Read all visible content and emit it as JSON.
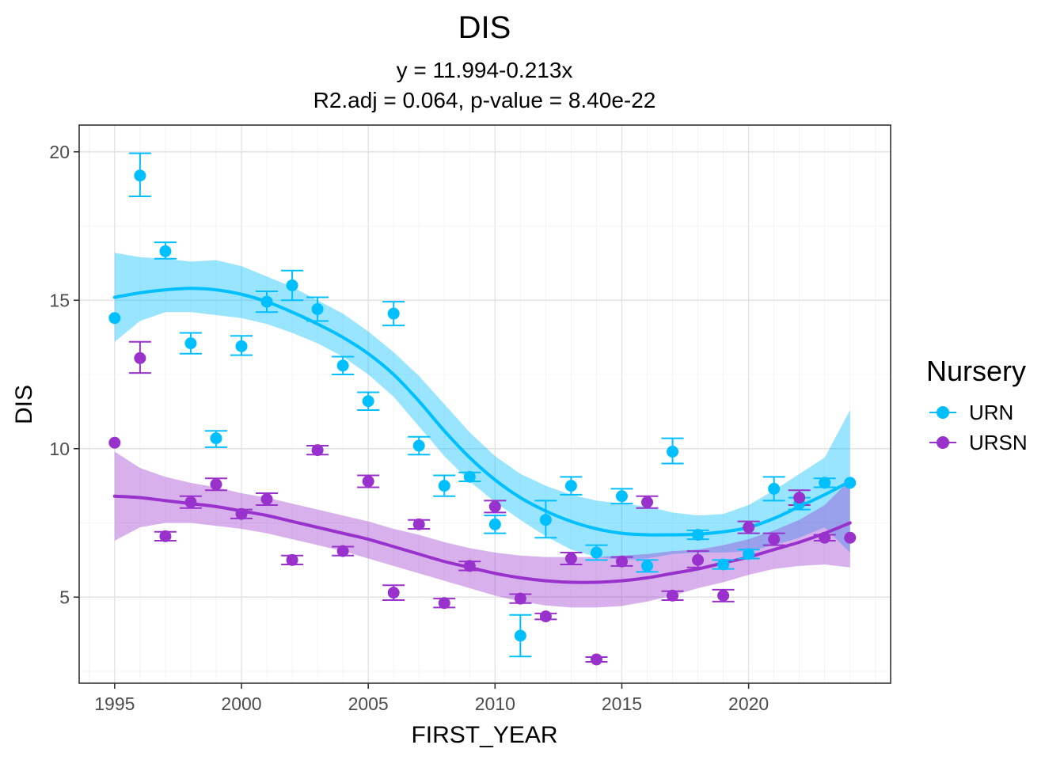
{
  "chart_data": {
    "type": "scatter",
    "title": "DIS",
    "subtitle_line1": "y = 11.994-0.213x",
    "subtitle_line2": "R2.adj = 0.064, p-value = 8.40e-22",
    "xlabel": "FIRST_YEAR",
    "ylabel": "DIS",
    "xlim": [
      1993.6,
      2025.6
    ],
    "ylim": [
      2.1,
      20.9
    ],
    "x_ticks": [
      1995,
      2000,
      2005,
      2010,
      2015,
      2020
    ],
    "y_ticks": [
      5,
      10,
      15,
      20
    ],
    "grid": true,
    "legend": {
      "title": "Nursery",
      "position": "right"
    },
    "series": [
      {
        "name": "URN",
        "color": "#00bfff",
        "band_color": "#87defb",
        "points": [
          {
            "x": 1995,
            "y": 14.4,
            "lo": 14.4,
            "hi": 14.4
          },
          {
            "x": 1996,
            "y": 19.2,
            "lo": 18.5,
            "hi": 19.95
          },
          {
            "x": 1997,
            "y": 16.65,
            "lo": 16.4,
            "hi": 16.95
          },
          {
            "x": 1998,
            "y": 13.55,
            "lo": 13.2,
            "hi": 13.9
          },
          {
            "x": 1999,
            "y": 10.35,
            "lo": 10.05,
            "hi": 10.6
          },
          {
            "x": 2000,
            "y": 13.45,
            "lo": 13.15,
            "hi": 13.8
          },
          {
            "x": 2001,
            "y": 14.95,
            "lo": 14.6,
            "hi": 15.3
          },
          {
            "x": 2002,
            "y": 15.5,
            "lo": 15.0,
            "hi": 16.0
          },
          {
            "x": 2003,
            "y": 14.7,
            "lo": 14.3,
            "hi": 15.1
          },
          {
            "x": 2004,
            "y": 12.8,
            "lo": 12.5,
            "hi": 13.1
          },
          {
            "x": 2005,
            "y": 11.6,
            "lo": 11.3,
            "hi": 11.9
          },
          {
            "x": 2006,
            "y": 14.55,
            "lo": 14.15,
            "hi": 14.95
          },
          {
            "x": 2007,
            "y": 10.1,
            "lo": 9.8,
            "hi": 10.4
          },
          {
            "x": 2008,
            "y": 8.75,
            "lo": 8.4,
            "hi": 9.1
          },
          {
            "x": 2009,
            "y": 9.05,
            "lo": 8.9,
            "hi": 9.2
          },
          {
            "x": 2010,
            "y": 7.45,
            "lo": 7.15,
            "hi": 7.75
          },
          {
            "x": 2011,
            "y": 3.7,
            "lo": 3.0,
            "hi": 4.4
          },
          {
            "x": 2012,
            "y": 7.6,
            "lo": 7.0,
            "hi": 8.25
          },
          {
            "x": 2013,
            "y": 8.75,
            "lo": 8.45,
            "hi": 9.05
          },
          {
            "x": 2014,
            "y": 6.5,
            "lo": 6.25,
            "hi": 6.75
          },
          {
            "x": 2015,
            "y": 8.4,
            "lo": 8.15,
            "hi": 8.65
          },
          {
            "x": 2016,
            "y": 6.05,
            "lo": 5.85,
            "hi": 6.25
          },
          {
            "x": 2017,
            "y": 9.9,
            "lo": 9.5,
            "hi": 10.35
          },
          {
            "x": 2018,
            "y": 7.1,
            "lo": 6.95,
            "hi": 7.25
          },
          {
            "x": 2019,
            "y": 6.1,
            "lo": 5.95,
            "hi": 6.25
          },
          {
            "x": 2020,
            "y": 6.45,
            "lo": 6.3,
            "hi": 6.6
          },
          {
            "x": 2021,
            "y": 8.65,
            "lo": 8.25,
            "hi": 9.05
          },
          {
            "x": 2022,
            "y": 8.15,
            "lo": 7.95,
            "hi": 8.35
          },
          {
            "x": 2023,
            "y": 8.85,
            "lo": 8.7,
            "hi": 9.0
          },
          {
            "x": 2024,
            "y": 8.85,
            "lo": 8.85,
            "hi": 8.85
          }
        ],
        "smooth": {
          "x": [
            1995,
            1996,
            1997,
            1998,
            1999,
            2000,
            2001,
            2002,
            2003,
            2004,
            2005,
            2006,
            2007,
            2008,
            2009,
            2010,
            2011,
            2012,
            2013,
            2014,
            2015,
            2016,
            2017,
            2018,
            2019,
            2020,
            2021,
            2022,
            2023,
            2024
          ],
          "y": [
            15.1,
            15.25,
            15.35,
            15.4,
            15.35,
            15.2,
            14.95,
            14.6,
            14.2,
            13.75,
            13.2,
            12.5,
            11.6,
            10.6,
            9.7,
            8.95,
            8.35,
            7.9,
            7.55,
            7.3,
            7.15,
            7.1,
            7.1,
            7.12,
            7.2,
            7.35,
            7.65,
            8.05,
            8.45,
            8.9
          ],
          "lower": [
            13.6,
            14.3,
            14.6,
            14.6,
            14.5,
            14.4,
            14.2,
            13.9,
            13.55,
            13.1,
            12.5,
            11.75,
            10.75,
            9.75,
            8.9,
            8.2,
            7.6,
            7.05,
            6.6,
            6.35,
            6.25,
            6.3,
            6.45,
            6.5,
            6.5,
            6.55,
            6.75,
            7.0,
            7.35,
            6.5
          ],
          "upper": [
            16.6,
            16.45,
            16.4,
            16.3,
            16.35,
            16.15,
            15.8,
            15.45,
            15.0,
            14.55,
            13.95,
            13.25,
            12.45,
            11.5,
            10.55,
            9.75,
            9.15,
            8.75,
            8.45,
            8.25,
            8.15,
            8.05,
            7.85,
            7.75,
            7.8,
            8.1,
            8.6,
            9.15,
            9.7,
            11.3
          ]
        }
      },
      {
        "name": "URSN",
        "color": "#9932cc",
        "band_color": "#d2a3ee",
        "points": [
          {
            "x": 1995,
            "y": 10.2,
            "lo": 10.2,
            "hi": 10.2
          },
          {
            "x": 1996,
            "y": 13.05,
            "lo": 12.55,
            "hi": 13.6
          },
          {
            "x": 1997,
            "y": 7.05,
            "lo": 6.9,
            "hi": 7.2
          },
          {
            "x": 1998,
            "y": 8.2,
            "lo": 8.0,
            "hi": 8.4
          },
          {
            "x": 1999,
            "y": 8.8,
            "lo": 8.6,
            "hi": 9.0
          },
          {
            "x": 2000,
            "y": 7.8,
            "lo": 7.65,
            "hi": 7.95
          },
          {
            "x": 2001,
            "y": 8.3,
            "lo": 8.1,
            "hi": 8.5
          },
          {
            "x": 2002,
            "y": 6.25,
            "lo": 6.1,
            "hi": 6.4
          },
          {
            "x": 2003,
            "y": 9.95,
            "lo": 9.8,
            "hi": 10.1
          },
          {
            "x": 2004,
            "y": 6.55,
            "lo": 6.4,
            "hi": 6.7
          },
          {
            "x": 2005,
            "y": 8.9,
            "lo": 8.7,
            "hi": 9.1
          },
          {
            "x": 2006,
            "y": 5.15,
            "lo": 4.9,
            "hi": 5.4
          },
          {
            "x": 2007,
            "y": 7.45,
            "lo": 7.3,
            "hi": 7.6
          },
          {
            "x": 2008,
            "y": 4.8,
            "lo": 4.65,
            "hi": 4.95
          },
          {
            "x": 2009,
            "y": 6.05,
            "lo": 5.9,
            "hi": 6.2
          },
          {
            "x": 2010,
            "y": 8.05,
            "lo": 7.85,
            "hi": 8.25
          },
          {
            "x": 2011,
            "y": 4.95,
            "lo": 4.8,
            "hi": 5.1
          },
          {
            "x": 2012,
            "y": 4.35,
            "lo": 4.25,
            "hi": 4.45
          },
          {
            "x": 2013,
            "y": 6.3,
            "lo": 6.1,
            "hi": 6.5
          },
          {
            "x": 2014,
            "y": 2.9,
            "lo": 2.82,
            "hi": 2.98
          },
          {
            "x": 2015,
            "y": 6.2,
            "lo": 6.05,
            "hi": 6.35
          },
          {
            "x": 2016,
            "y": 8.2,
            "lo": 8.0,
            "hi": 8.4
          },
          {
            "x": 2017,
            "y": 5.05,
            "lo": 4.9,
            "hi": 5.2
          },
          {
            "x": 2018,
            "y": 6.25,
            "lo": 6.0,
            "hi": 6.55
          },
          {
            "x": 2019,
            "y": 5.05,
            "lo": 4.85,
            "hi": 5.25
          },
          {
            "x": 2020,
            "y": 7.35,
            "lo": 7.15,
            "hi": 7.55
          },
          {
            "x": 2021,
            "y": 6.95,
            "lo": 6.75,
            "hi": 7.15
          },
          {
            "x": 2022,
            "y": 8.35,
            "lo": 8.1,
            "hi": 8.6
          },
          {
            "x": 2023,
            "y": 7.0,
            "lo": 6.9,
            "hi": 7.1
          },
          {
            "x": 2024,
            "y": 7.0,
            "lo": 7.0,
            "hi": 7.0
          }
        ],
        "smooth": {
          "x": [
            1995,
            1996,
            1997,
            1998,
            1999,
            2000,
            2001,
            2002,
            2003,
            2004,
            2005,
            2006,
            2007,
            2008,
            2009,
            2010,
            2011,
            2012,
            2013,
            2014,
            2015,
            2016,
            2017,
            2018,
            2019,
            2020,
            2021,
            2022,
            2023,
            2024
          ],
          "y": [
            8.4,
            8.35,
            8.25,
            8.15,
            8.05,
            7.9,
            7.75,
            7.55,
            7.35,
            7.15,
            6.95,
            6.7,
            6.45,
            6.2,
            6.0,
            5.8,
            5.65,
            5.55,
            5.5,
            5.5,
            5.55,
            5.65,
            5.8,
            5.95,
            6.15,
            6.35,
            6.6,
            6.85,
            7.15,
            7.5
          ],
          "lower": [
            6.9,
            7.35,
            7.5,
            7.5,
            7.4,
            7.3,
            7.15,
            6.95,
            6.75,
            6.55,
            6.3,
            6.05,
            5.8,
            5.55,
            5.3,
            5.05,
            4.85,
            4.72,
            4.65,
            4.65,
            4.7,
            4.85,
            5.05,
            5.3,
            5.5,
            5.75,
            5.95,
            6.05,
            6.1,
            6.0
          ],
          "upper": [
            9.9,
            9.35,
            9.05,
            8.85,
            8.7,
            8.5,
            8.35,
            8.15,
            7.95,
            7.75,
            7.55,
            7.3,
            7.1,
            6.85,
            6.65,
            6.5,
            6.4,
            6.35,
            6.35,
            6.35,
            6.4,
            6.45,
            6.55,
            6.6,
            6.75,
            6.95,
            7.25,
            7.6,
            8.1,
            8.95
          ]
        }
      }
    ]
  }
}
